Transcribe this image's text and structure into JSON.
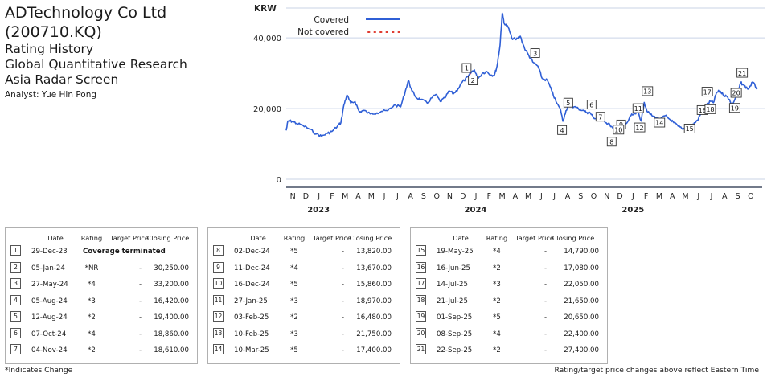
{
  "header": {
    "company": "ADTechnology Co Ltd (200710.KQ)",
    "line1": "Rating History",
    "line2": "Global Quantitative Research",
    "line3": "Asia Radar Screen",
    "analyst": "Analyst: Yue Hin Pong"
  },
  "chart_data": {
    "type": "line",
    "unit_label": "KRW",
    "ylim": [
      0,
      48000
    ],
    "y_ticks": [
      0,
      20000,
      40000
    ],
    "y_tick_labels": [
      "0",
      "20,000",
      "40,000"
    ],
    "grid": true,
    "legend_position": "top-left",
    "months": [
      "N",
      "D",
      "J",
      "F",
      "M",
      "A",
      "M",
      "J",
      "J",
      "A",
      "S",
      "O",
      "N",
      "D",
      "J",
      "F",
      "M",
      "A",
      "M",
      "J",
      "J",
      "A",
      "S",
      "O",
      "N",
      "D",
      "J",
      "F",
      "M",
      "A",
      "M",
      "J",
      "J",
      "A",
      "S",
      "O"
    ],
    "years": [
      "2023",
      "2024",
      "2025"
    ],
    "series": [
      {
        "name": "Covered",
        "color": "#2f5fd6",
        "style": "solid"
      },
      {
        "name": "Not covered",
        "color": "#e03a2f",
        "style": "dotted"
      }
    ],
    "x_start": "2022-11-01",
    "x_end": "2025-10-31",
    "price_points": [
      [
        "2022-11-01",
        13800
      ],
      [
        "2022-11-05",
        16500
      ],
      [
        "2022-11-15",
        16400
      ],
      [
        "2022-11-25",
        15800
      ],
      [
        "2022-12-10",
        15200
      ],
      [
        "2022-12-25",
        14200
      ],
      [
        "2023-01-10",
        12800
      ],
      [
        "2023-01-22",
        12200
      ],
      [
        "2023-02-05",
        13000
      ],
      [
        "2023-02-15",
        13500
      ],
      [
        "2023-02-28",
        15000
      ],
      [
        "2023-03-08",
        16000
      ],
      [
        "2023-03-15",
        21000
      ],
      [
        "2023-03-22",
        23800
      ],
      [
        "2023-03-31",
        21500
      ],
      [
        "2023-04-10",
        22000
      ],
      [
        "2023-04-20",
        19000
      ],
      [
        "2023-04-30",
        19500
      ],
      [
        "2023-05-15",
        18500
      ],
      [
        "2023-05-31",
        18800
      ],
      [
        "2023-06-10",
        19200
      ],
      [
        "2023-06-25",
        19400
      ],
      [
        "2023-07-10",
        21000
      ],
      [
        "2023-07-25",
        20500
      ],
      [
        "2023-08-05",
        25000
      ],
      [
        "2023-08-12",
        28000
      ],
      [
        "2023-08-20",
        25000
      ],
      [
        "2023-08-31",
        23000
      ],
      [
        "2023-09-10",
        22600
      ],
      [
        "2023-09-25",
        21500
      ],
      [
        "2023-10-05",
        23000
      ],
      [
        "2023-10-15",
        24000
      ],
      [
        "2023-10-25",
        22000
      ],
      [
        "2023-11-05",
        23000
      ],
      [
        "2023-11-15",
        25000
      ],
      [
        "2023-11-25",
        24200
      ],
      [
        "2023-12-05",
        25500
      ],
      [
        "2023-12-15",
        27500
      ],
      [
        "2023-12-29",
        29000
      ],
      [
        "2024-01-05",
        30250
      ],
      [
        "2024-01-12",
        31000
      ],
      [
        "2024-01-20",
        28500
      ],
      [
        "2024-01-31",
        30000
      ],
      [
        "2024-02-10",
        30500
      ],
      [
        "2024-02-20",
        29500
      ],
      [
        "2024-02-28",
        29500
      ],
      [
        "2024-03-05",
        32000
      ],
      [
        "2024-03-12",
        38000
      ],
      [
        "2024-03-17",
        47000
      ],
      [
        "2024-03-22",
        44000
      ],
      [
        "2024-03-31",
        43000
      ],
      [
        "2024-04-08",
        40000
      ],
      [
        "2024-04-18",
        39500
      ],
      [
        "2024-04-28",
        40500
      ],
      [
        "2024-05-08",
        37000
      ],
      [
        "2024-05-18",
        35000
      ],
      [
        "2024-05-27",
        33200
      ],
      [
        "2024-06-08",
        32000
      ],
      [
        "2024-06-18",
        28500
      ],
      [
        "2024-06-30",
        28000
      ],
      [
        "2024-07-10",
        25000
      ],
      [
        "2024-07-20",
        22000
      ],
      [
        "2024-07-31",
        19500
      ],
      [
        "2024-08-05",
        16420
      ],
      [
        "2024-08-12",
        19400
      ],
      [
        "2024-08-20",
        21000
      ],
      [
        "2024-08-31",
        20500
      ],
      [
        "2024-09-10",
        20000
      ],
      [
        "2024-09-20",
        19500
      ],
      [
        "2024-09-30",
        18900
      ],
      [
        "2024-10-07",
        18860
      ],
      [
        "2024-10-15",
        17500
      ],
      [
        "2024-10-25",
        17000
      ],
      [
        "2024-11-04",
        18610
      ],
      [
        "2024-11-12",
        16000
      ],
      [
        "2024-11-22",
        15500
      ],
      [
        "2024-12-02",
        13820
      ],
      [
        "2024-12-11",
        13670
      ],
      [
        "2024-12-16",
        15860
      ],
      [
        "2024-12-22",
        14500
      ],
      [
        "2024-12-31",
        15800
      ],
      [
        "2025-01-10",
        18000
      ],
      [
        "2025-01-20",
        18500
      ],
      [
        "2025-01-27",
        18970
      ],
      [
        "2025-02-03",
        16480
      ],
      [
        "2025-02-10",
        21750
      ],
      [
        "2025-02-18",
        19000
      ],
      [
        "2025-02-28",
        18000
      ],
      [
        "2025-03-10",
        17400
      ],
      [
        "2025-03-20",
        17000
      ],
      [
        "2025-03-31",
        18000
      ],
      [
        "2025-04-10",
        17000
      ],
      [
        "2025-04-20",
        16000
      ],
      [
        "2025-04-30",
        15000
      ],
      [
        "2025-05-10",
        14200
      ],
      [
        "2025-05-19",
        14790
      ],
      [
        "2025-05-31",
        15000
      ],
      [
        "2025-06-08",
        16000
      ],
      [
        "2025-06-16",
        17080
      ],
      [
        "2025-06-25",
        19500
      ],
      [
        "2025-07-05",
        21000
      ],
      [
        "2025-07-14",
        22050
      ],
      [
        "2025-07-21",
        21650
      ],
      [
        "2025-07-28",
        24500
      ],
      [
        "2025-08-05",
        25000
      ],
      [
        "2025-08-12",
        24000
      ],
      [
        "2025-08-20",
        23500
      ],
      [
        "2025-08-28",
        22500
      ],
      [
        "2025-09-01",
        20650
      ],
      [
        "2025-09-08",
        22400
      ],
      [
        "2025-09-15",
        24000
      ],
      [
        "2025-09-22",
        27400
      ],
      [
        "2025-09-30",
        26500
      ],
      [
        "2025-10-10",
        25500
      ],
      [
        "2025-10-20",
        27500
      ],
      [
        "2025-10-31",
        25500
      ]
    ],
    "not_covered_points": [
      [
        "2023-12-29",
        29000
      ],
      [
        "2024-01-05",
        30250
      ]
    ],
    "rating_events": [
      {
        "n": "1",
        "date": "2023-12-29",
        "price": 29000,
        "rating": "Coverage terminated",
        "target": "",
        "close": ""
      },
      {
        "n": "2",
        "date": "2024-01-05",
        "price": 30250,
        "rating": "*NR",
        "target": "-",
        "close": "30,250.00"
      },
      {
        "n": "3",
        "date": "2024-05-27",
        "price": 33200,
        "rating": "*4",
        "target": "-",
        "close": "33,200.00"
      },
      {
        "n": "4",
        "date": "2024-08-05",
        "price": 16420,
        "rating": "*3",
        "target": "-",
        "close": "16,420.00"
      },
      {
        "n": "5",
        "date": "2024-08-12",
        "price": 19400,
        "rating": "*2",
        "target": "-",
        "close": "19,400.00"
      },
      {
        "n": "6",
        "date": "2024-10-07",
        "price": 18860,
        "rating": "*4",
        "target": "-",
        "close": "18,860.00"
      },
      {
        "n": "7",
        "date": "2024-11-04",
        "price": 18610,
        "rating": "*2",
        "target": "-",
        "close": "18,610.00"
      },
      {
        "n": "8",
        "date": "2024-12-02",
        "price": 13820,
        "rating": "*5",
        "target": "-",
        "close": "13,820.00"
      },
      {
        "n": "9",
        "date": "2024-12-11",
        "price": 13670,
        "rating": "*4",
        "target": "-",
        "close": "13,670.00"
      },
      {
        "n": "10",
        "date": "2024-12-16",
        "price": 15860,
        "rating": "*5",
        "target": "-",
        "close": "15,860.00"
      },
      {
        "n": "11",
        "date": "2025-01-27",
        "price": 18970,
        "rating": "*3",
        "target": "-",
        "close": "18,970.00"
      },
      {
        "n": "12",
        "date": "2025-02-03",
        "price": 16480,
        "rating": "*2",
        "target": "-",
        "close": "16,480.00"
      },
      {
        "n": "13",
        "date": "2025-02-10",
        "price": 21750,
        "rating": "*3",
        "target": "-",
        "close": "21,750.00"
      },
      {
        "n": "14",
        "date": "2025-03-10",
        "price": 17400,
        "rating": "*5",
        "target": "-",
        "close": "17,400.00"
      },
      {
        "n": "15",
        "date": "2025-05-19",
        "price": 14790,
        "rating": "*4",
        "target": "-",
        "close": "14,790.00"
      },
      {
        "n": "16",
        "date": "2025-06-16",
        "price": 17080,
        "rating": "*2",
        "target": "-",
        "close": "17,080.00"
      },
      {
        "n": "17",
        "date": "2025-07-14",
        "price": 22050,
        "rating": "*3",
        "target": "-",
        "close": "22,050.00"
      },
      {
        "n": "18",
        "date": "2025-07-21",
        "price": 21650,
        "rating": "*2",
        "target": "-",
        "close": "21,650.00"
      },
      {
        "n": "19",
        "date": "2025-09-01",
        "price": 20650,
        "rating": "*5",
        "target": "-",
        "close": "20,650.00"
      },
      {
        "n": "20",
        "date": "2025-09-08",
        "price": 22400,
        "rating": "*4",
        "target": "-",
        "close": "22,400.00"
      },
      {
        "n": "21",
        "date": "2025-09-22",
        "price": 27400,
        "rating": "*2",
        "target": "-",
        "close": "27,400.00"
      }
    ]
  },
  "table": {
    "headers": [
      "Date",
      "Rating",
      "Target Price",
      "Closing Price"
    ],
    "rows": [
      {
        "n": "1",
        "date": "29-Dec-23",
        "rating": "Coverage terminated",
        "target": "",
        "close": ""
      },
      {
        "n": "2",
        "date": "05-Jan-24",
        "rating": "*NR",
        "target": "-",
        "close": "30,250.00"
      },
      {
        "n": "3",
        "date": "27-May-24",
        "rating": "*4",
        "target": "-",
        "close": "33,200.00"
      },
      {
        "n": "4",
        "date": "05-Aug-24",
        "rating": "*3",
        "target": "-",
        "close": "16,420.00"
      },
      {
        "n": "5",
        "date": "12-Aug-24",
        "rating": "*2",
        "target": "-",
        "close": "19,400.00"
      },
      {
        "n": "6",
        "date": "07-Oct-24",
        "rating": "*4",
        "target": "-",
        "close": "18,860.00"
      },
      {
        "n": "7",
        "date": "04-Nov-24",
        "rating": "*2",
        "target": "-",
        "close": "18,610.00"
      },
      {
        "n": "8",
        "date": "02-Dec-24",
        "rating": "*5",
        "target": "-",
        "close": "13,820.00"
      },
      {
        "n": "9",
        "date": "11-Dec-24",
        "rating": "*4",
        "target": "-",
        "close": "13,670.00"
      },
      {
        "n": "10",
        "date": "16-Dec-24",
        "rating": "*5",
        "target": "-",
        "close": "15,860.00"
      },
      {
        "n": "11",
        "date": "27-Jan-25",
        "rating": "*3",
        "target": "-",
        "close": "18,970.00"
      },
      {
        "n": "12",
        "date": "03-Feb-25",
        "rating": "*2",
        "target": "-",
        "close": "16,480.00"
      },
      {
        "n": "13",
        "date": "10-Feb-25",
        "rating": "*3",
        "target": "-",
        "close": "21,750.00"
      },
      {
        "n": "14",
        "date": "10-Mar-25",
        "rating": "*5",
        "target": "-",
        "close": "17,400.00"
      },
      {
        "n": "15",
        "date": "19-May-25",
        "rating": "*4",
        "target": "-",
        "close": "14,790.00"
      },
      {
        "n": "16",
        "date": "16-Jun-25",
        "rating": "*2",
        "target": "-",
        "close": "17,080.00"
      },
      {
        "n": "17",
        "date": "14-Jul-25",
        "rating": "*3",
        "target": "-",
        "close": "22,050.00"
      },
      {
        "n": "18",
        "date": "21-Jul-25",
        "rating": "*2",
        "target": "-",
        "close": "21,650.00"
      },
      {
        "n": "19",
        "date": "01-Sep-25",
        "rating": "*5",
        "target": "-",
        "close": "20,650.00"
      },
      {
        "n": "20",
        "date": "08-Sep-25",
        "rating": "*4",
        "target": "-",
        "close": "22,400.00"
      },
      {
        "n": "21",
        "date": "22-Sep-25",
        "rating": "*2",
        "target": "-",
        "close": "27,400.00"
      }
    ]
  },
  "footer": {
    "left": "*Indicates Change",
    "right": "Rating/target price changes above reflect Eastern Time"
  }
}
